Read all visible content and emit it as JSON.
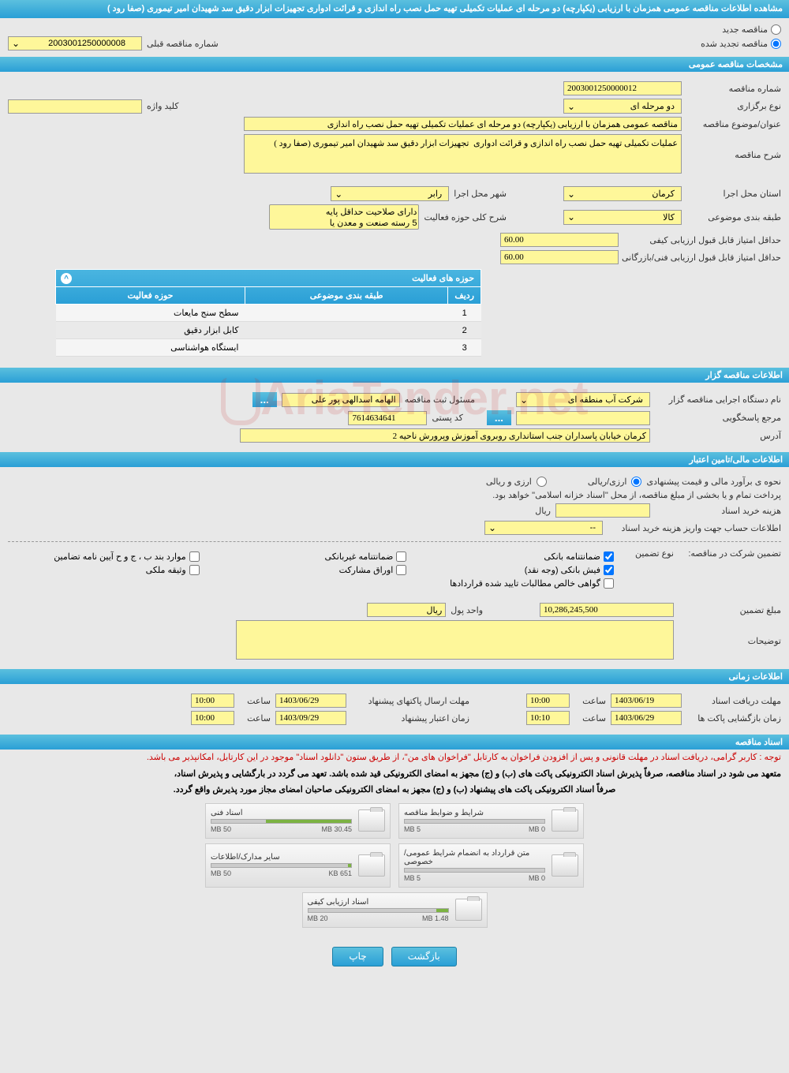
{
  "header": {
    "title": "مشاهده اطلاعات مناقصه عمومی همزمان با ارزیابی (یکپارچه) دو مرحله ای عملیات تکمیلی تهیه حمل نصب راه اندازی و قرائت ادواری تجهیزات ابزار دقیق سد شهیدان امیر تیموری (صفا رود )"
  },
  "radio": {
    "new": "مناقصه جدید",
    "renewed": "مناقصه تجدید شده",
    "prev_label": "شماره مناقصه قبلی",
    "prev_value": "2003001250000008"
  },
  "sec_general": {
    "title": "مشخصات مناقصه عمومی",
    "tender_no_label": "شماره مناقصه",
    "tender_no": "2003001250000012",
    "type_label": "نوع برگزاری",
    "type": "دو مرحله ای",
    "keyword_label": "کلید واژه",
    "keyword": "",
    "subject_label": "عنوان/موضوع مناقصه",
    "subject": "مناقصه عمومی همزمان با ارزیابی (یکپارچه) دو مرحله ای عملیات تکمیلی تهیه حمل نصب راه اندازی",
    "desc_label": "شرح مناقصه",
    "desc": "عملیات تکمیلی تهیه حمل نصب راه اندازی و قرائت ادواری  تجهیزات ابزار دقیق سد شهیدان امیر تیموری (صفا رود )",
    "province_label": "استان محل اجرا",
    "province": "کرمان",
    "city_label": "شهر محل اجرا",
    "city": "رابر",
    "cat_label": "طبقه بندی موضوعی",
    "cat": "کالا",
    "field_label": "شرح کلی حوزه فعالیت",
    "field_opt1": "دارای صلاحیت حداقل پایه",
    "field_opt2": "5 رسته صنعت و معدن یا",
    "score1_label": "حداقل امتیاز قابل قبول ارزیابی کیفی",
    "score1": "60.00",
    "score2_label": "حداقل امتیاز قابل قبول ارزیابی فنی/بازرگانی",
    "score2": "60.00"
  },
  "activity_table": {
    "title": "حوزه های فعالیت",
    "col_row": "ردیف",
    "col_cat": "طبقه بندی موضوعی",
    "col_field": "حوزه فعالیت",
    "rows": [
      {
        "n": "1",
        "cat": "",
        "field": "سطح سنج مایعات"
      },
      {
        "n": "2",
        "cat": "",
        "field": "کابل ابزار دقیق"
      },
      {
        "n": "3",
        "cat": "",
        "field": "ایستگاه هواشناسی"
      }
    ]
  },
  "sec_organizer": {
    "title": "اطلاعات مناقصه گزار",
    "org_label": "نام دستگاه اجرایی مناقصه گزار",
    "org": "شرکت آب منطقه ای",
    "resp_label": "مسئول ثبت مناقصه",
    "resp": "الهامه اسدالهی پور علی",
    "contact_label": "مرجع پاسخگویی",
    "contact": "",
    "postal_label": "کد پستی",
    "postal": "7614634641",
    "address_label": "آدرس",
    "address": "کرمان خیابان پاسداران جنب استانداری روبروی آموزش وپرورش ناحیه 2"
  },
  "sec_financial": {
    "title": "اطلاعات مالی/تامین اعتبار",
    "method_label": "نحوه ی برآورد مالی و قیمت پیشنهادی",
    "method_opt1": "ارزی/ریالی",
    "method_opt2": "ارزی و ریالی",
    "payment_note": "پرداخت تمام و یا بخشی از مبلغ مناقصه، از محل \"اسناد خزانه اسلامی\" خواهد بود.",
    "doc_cost_label": "هزینه خرید اسناد",
    "doc_cost_unit": "ريال",
    "account_label": "اطلاعات حساب جهت واریز هزینه خرید اسناد",
    "account": "--",
    "guarantee_label": "تضمین شرکت در مناقصه:",
    "guarantee_type_label": "نوع تضمین",
    "g1": "ضمانتنامه بانکی",
    "g2": "ضمانتنامه غیربانکی",
    "g3": "موارد بند ب ، ج و ح آیین نامه تضامین",
    "g4": "فیش بانکی (وجه نقد)",
    "g5": "اوراق مشارکت",
    "g6": "وثیقه ملکی",
    "g7": "گواهی خالص مطالبات تایید شده قراردادها",
    "amount_label": "مبلغ تضمین",
    "amount": "10,286,245,500",
    "unit_label": "واحد پول",
    "unit": "ريال",
    "notes_label": "توضیحات"
  },
  "sec_time": {
    "title": "اطلاعات زمانی",
    "deadline_doc_label": "مهلت دریافت اسناد",
    "deadline_doc_date": "1403/06/19",
    "deadline_doc_time": "10:00",
    "deadline_send_label": "مهلت ارسال پاکتهای پیشنهاد",
    "deadline_send_date": "1403/06/29",
    "deadline_send_time": "10:00",
    "open_label": "زمان بازگشایی پاکت ها",
    "open_date": "1403/06/29",
    "open_time": "10:10",
    "valid_label": "زمان اعتبار پیشنهاد",
    "valid_date": "1403/09/29",
    "valid_time": "10:00",
    "time_label": "ساعت"
  },
  "sec_docs": {
    "title": "اسناد مناقصه",
    "notice": "توجه : کاربر گرامی، دریافت اسناد در مهلت قانونی و پس از افزودن فراخوان به کارتابل \"فراخوان های من\"، از طریق ستون \"دانلود اسناد\" موجود در این کارتابل، امکانپذیر می باشد.",
    "note1": "متعهد می شود در اسناد مناقصه، صرفاً پذیرش اسناد الکترونیکی پاکت های (ب) و (ج) مجهز به امضای الکترونیکی قید شده باشد. تعهد می گردد در بارگشایی و پذیرش اسناد،",
    "note2": "صرفاً اسناد الکترونیکی پاکت های پیشنهاد (ب) و (ج) مجهز به امضای الکترونیکی صاحبان امضای مجاز مورد پذیرش واقع گردد.",
    "files": [
      {
        "title": "شرایط و ضوابط مناقصه",
        "used": "0 MB",
        "total": "5 MB",
        "pct": 0
      },
      {
        "title": "اسناد فنی",
        "used": "30.45 MB",
        "total": "50 MB",
        "pct": 61
      },
      {
        "title": "متن قرارداد به انضمام شرایط عمومی/خصوصی",
        "used": "0 MB",
        "total": "5 MB",
        "pct": 0
      },
      {
        "title": "سایر مدارک/اطلاعات",
        "used": "651 KB",
        "total": "50 MB",
        "pct": 2
      },
      {
        "title": "اسناد ارزیابی کیفی",
        "used": "1.48 MB",
        "total": "20 MB",
        "pct": 8
      }
    ]
  },
  "footer": {
    "back": "بازگشت",
    "print": "چاپ"
  },
  "watermark": "AriaTender.net",
  "colors": {
    "header_bg": "#2a9fd6",
    "input_bg": "#fef79a",
    "page_bg": "#e8e8e8"
  }
}
